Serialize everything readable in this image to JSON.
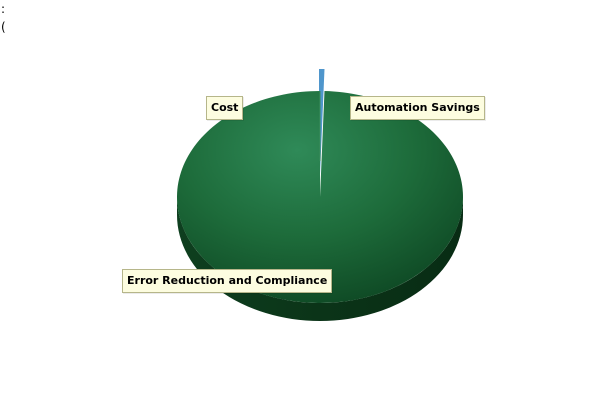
{
  "header": {
    "line_1": ":",
    "line_2": "("
  },
  "chart_data": {
    "type": "pie",
    "style": "3d",
    "title": "",
    "slices": [
      {
        "label": "Automation Savings",
        "value": 0.5,
        "color": "#4f96cc"
      },
      {
        "label": "Error Reduction and Compliance",
        "value": 99.5,
        "color": "#1f6b3b"
      },
      {
        "label": "Cost",
        "value": 0.0,
        "color": "#1f6b3b"
      }
    ]
  }
}
